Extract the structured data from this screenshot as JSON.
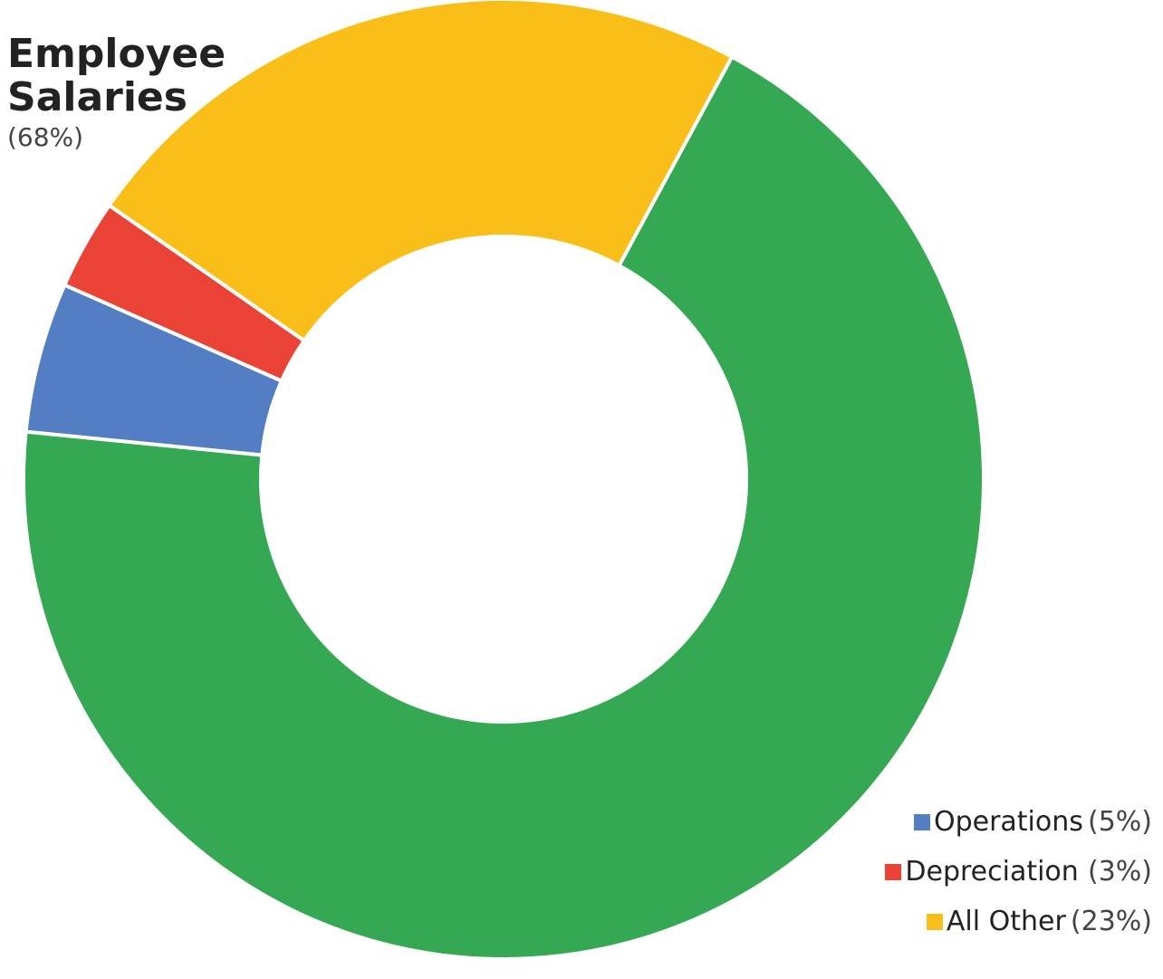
{
  "chart_data": {
    "type": "pie",
    "donut": true,
    "slices": [
      {
        "name": "Employee Salaries",
        "value": 68,
        "pct_label": "(68%)",
        "color": "#34a853"
      },
      {
        "name": "Operations",
        "value": 5,
        "pct_label": "(5%)",
        "color": "#547ec4"
      },
      {
        "name": "Depreciation",
        "value": 3,
        "pct_label": "(3%)",
        "color": "#ea4335"
      },
      {
        "name": "All Other",
        "value": 23,
        "pct_label": "(23%)",
        "color": "#f9be17"
      }
    ],
    "direct_label": {
      "name_line1": "Employee",
      "name_line2": "Salaries",
      "pct": "(68%)"
    },
    "legend": [
      {
        "name": "Operations",
        "gap": " ",
        "pct": "(5%)",
        "color": "#547ec4"
      },
      {
        "name": "Depreciation",
        "gap": "  ",
        "pct": "(3%)",
        "color": "#ea4335"
      },
      {
        "name": "All Other",
        "gap": " ",
        "pct": "(23%)",
        "color": "#f9be17"
      }
    ],
    "legend_position": "bottom-right",
    "start_angle_deg": 28.4
  }
}
